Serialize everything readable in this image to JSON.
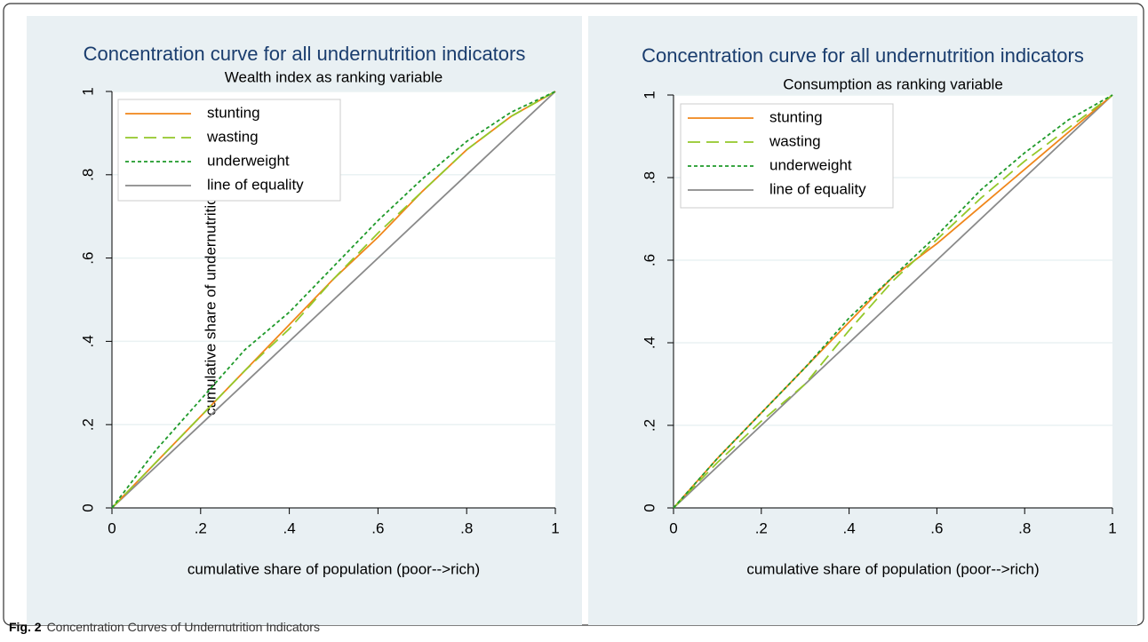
{
  "caption": {
    "label": "Fig. 2",
    "text": "Concentration Curves of Undernutrition Indicators"
  },
  "chart_data": [
    {
      "type": "line",
      "title": "Concentration curve for all undernutrition indicators",
      "subtitle": "Wealth index as ranking variable",
      "x_label": "cumulative share of population (poor-->rich)",
      "y_label": "cumulative share of undernutrition",
      "x": [
        0,
        0.1,
        0.2,
        0.3,
        0.4,
        0.5,
        0.6,
        0.7,
        0.8,
        0.9,
        1
      ],
      "series": [
        {
          "name": "stunting",
          "color": "#f0861a",
          "dash": "solid",
          "values": [
            0,
            0.11,
            0.22,
            0.33,
            0.44,
            0.55,
            0.65,
            0.76,
            0.86,
            0.94,
            1
          ]
        },
        {
          "name": "wasting",
          "color": "#94c82a",
          "dash": "long-dash",
          "values": [
            0,
            0.11,
            0.22,
            0.33,
            0.43,
            0.55,
            0.66,
            0.76,
            0.86,
            0.94,
            1
          ]
        },
        {
          "name": "underweight",
          "color": "#1f9a2a",
          "dash": "short-dash",
          "values": [
            0,
            0.14,
            0.26,
            0.38,
            0.47,
            0.58,
            0.69,
            0.79,
            0.88,
            0.95,
            1
          ]
        },
        {
          "name": "line of equality",
          "color": "#8a8a8a",
          "dash": "solid",
          "values": [
            0,
            0.1,
            0.2,
            0.3,
            0.4,
            0.5,
            0.6,
            0.7,
            0.8,
            0.9,
            1
          ]
        }
      ],
      "xlim": [
        0,
        1
      ],
      "ylim": [
        0,
        1
      ],
      "xticks": [
        0,
        {
          "value": 0.2,
          "label": ".2"
        },
        {
          "value": 0.4,
          "label": ".4"
        },
        {
          "value": 0.6,
          "label": ".6"
        },
        {
          "value": 0.8,
          "label": ".8"
        },
        1
      ],
      "yticks": [
        0,
        {
          "value": 0.2,
          "label": ".2"
        },
        {
          "value": 0.4,
          "label": ".4"
        },
        {
          "value": 0.6,
          "label": ".6"
        },
        {
          "value": 0.8,
          "label": ".8"
        },
        1
      ],
      "grid": true,
      "legend": "top-left"
    },
    {
      "type": "line",
      "title": "Concentration curve for all undernutrition indicators",
      "subtitle": "Consumption as ranking variable",
      "x_label": "cumulative share of population (poor-->rich)",
      "x": [
        0,
        0.1,
        0.2,
        0.3,
        0.4,
        0.5,
        0.6,
        0.7,
        0.8,
        0.9,
        1
      ],
      "series": [
        {
          "name": "stunting",
          "color": "#f0861a",
          "dash": "solid",
          "values": [
            0,
            0.12,
            0.23,
            0.34,
            0.45,
            0.56,
            0.64,
            0.73,
            0.82,
            0.91,
            1
          ]
        },
        {
          "name": "wasting",
          "color": "#94c82a",
          "dash": "long-dash",
          "values": [
            0,
            0.11,
            0.21,
            0.3,
            0.43,
            0.55,
            0.65,
            0.75,
            0.84,
            0.92,
            1
          ]
        },
        {
          "name": "underweight",
          "color": "#1f9a2a",
          "dash": "short-dash",
          "values": [
            0,
            0.12,
            0.23,
            0.34,
            0.46,
            0.56,
            0.66,
            0.77,
            0.86,
            0.94,
            1
          ]
        },
        {
          "name": "line of equality",
          "color": "#8a8a8a",
          "dash": "solid",
          "values": [
            0,
            0.1,
            0.2,
            0.3,
            0.4,
            0.5,
            0.6,
            0.7,
            0.8,
            0.9,
            1
          ]
        }
      ],
      "xlim": [
        0,
        1
      ],
      "ylim": [
        0,
        1
      ],
      "xticks": [
        0,
        {
          "value": 0.2,
          "label": ".2"
        },
        {
          "value": 0.4,
          "label": ".4"
        },
        {
          "value": 0.6,
          "label": ".6"
        },
        {
          "value": 0.8,
          "label": ".8"
        },
        1
      ],
      "yticks": [
        0,
        {
          "value": 0.2,
          "label": ".2"
        },
        {
          "value": 0.4,
          "label": ".4"
        },
        {
          "value": 0.6,
          "label": ".6"
        },
        {
          "value": 0.8,
          "label": ".8"
        },
        1
      ],
      "grid": true,
      "legend": "top-left"
    }
  ]
}
